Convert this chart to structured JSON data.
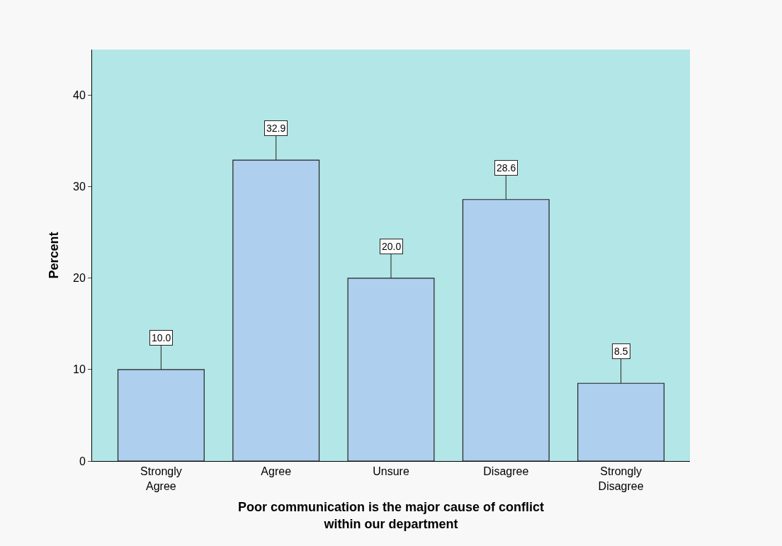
{
  "chart_data": {
    "type": "bar",
    "xlabel": "Poor communication is the major cause of conflict within our department",
    "ylabel": "Percent",
    "categories": [
      "Strongly Agree",
      "Agree",
      "Unsure",
      "Disagree",
      "Strongly Disagree"
    ],
    "values": [
      10.0,
      32.9,
      20.0,
      28.6,
      8.5
    ],
    "value_labels": [
      "10.0",
      "32.9",
      "20.0",
      "28.6",
      "8.5"
    ],
    "color": "#aecfee",
    "ylim": [
      0,
      45
    ],
    "yticks": [
      0,
      10,
      20,
      30,
      40
    ],
    "grid": false,
    "legend": false
  }
}
